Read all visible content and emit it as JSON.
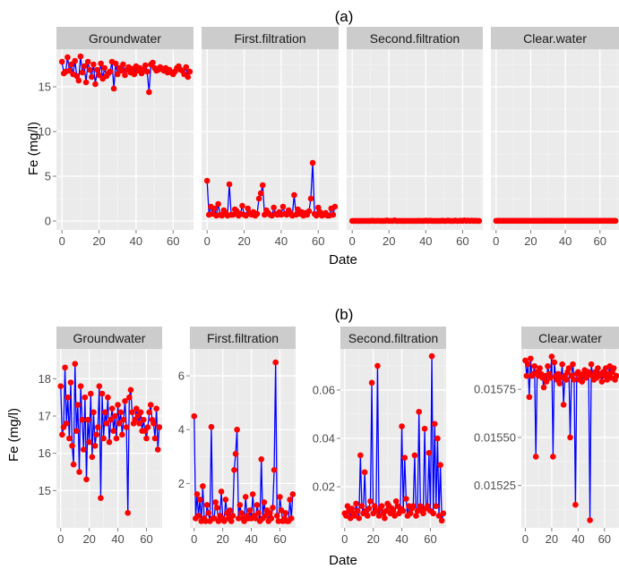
{
  "chart_data": [
    {
      "type": "line",
      "tag": "(a)",
      "xlabel": "Date",
      "ylabel": "Fe (mg/l)",
      "shared_y": true,
      "ylim": [
        -1.0,
        19.2
      ],
      "yticks": [
        0,
        5,
        10,
        15
      ],
      "xlim": [
        -3,
        71
      ],
      "xticks": [
        0,
        20,
        40,
        60
      ],
      "colors": {
        "line": "#0000ff",
        "point": "#ff0000"
      },
      "facets": [
        {
          "name": "Groundwater",
          "values": [
            17.8,
            16.5,
            16.7,
            18.3,
            16.8,
            17.5,
            16.4,
            17.9,
            16.2,
            15.7,
            18.4,
            16.6,
            17.3,
            15.5,
            17.8,
            16.9,
            16.1,
            17.5,
            15.3,
            16.9,
            16.3,
            17.6,
            15.9,
            17.1,
            16.2,
            16.5,
            16.7,
            17.8,
            14.8,
            17.6,
            16.4,
            17.1,
            16.8,
            17.5,
            16.3,
            16.9,
            17.2,
            16.6,
            17.0,
            16.4,
            17.3,
            16.8,
            17.1,
            16.5,
            16.9,
            17.4,
            16.7,
            14.4,
            17.5,
            17.7,
            17.1,
            16.8,
            16.9,
            17.2,
            17.0,
            16.8,
            17.1,
            16.6,
            16.9,
            16.6,
            16.4,
            16.7,
            17.1,
            17.3,
            16.9,
            16.8,
            16.4,
            17.2,
            16.1,
            16.7
          ]
        },
        {
          "name": "First.filtration",
          "values": [
            4.5,
            0.7,
            1.6,
            0.8,
            1.4,
            0.6,
            1.9,
            0.7,
            0.6,
            1.2,
            0.9,
            0.6,
            4.1,
            0.7,
            0.7,
            1.3,
            1.1,
            0.6,
            0.8,
            1.7,
            0.7,
            0.6,
            1.4,
            0.9,
            0.7,
            1.0,
            0.6,
            0.8,
            2.5,
            3.1,
            4.0,
            0.7,
            1.2,
            0.9,
            0.7,
            0.6,
            1.5,
            0.8,
            0.7,
            1.0,
            0.7,
            1.6,
            0.8,
            0.7,
            1.2,
            0.9,
            0.6,
            2.9,
            0.7,
            1.3,
            0.8,
            1.0,
            0.6,
            0.9,
            0.7,
            1.1,
            2.5,
            6.5,
            0.8,
            0.6,
            1.5,
            1.0,
            0.6,
            0.7,
            0.9,
            0.6,
            0.6,
            1.4,
            0.7,
            1.6
          ]
        },
        {
          "name": "Second.filtration",
          "values": [
            0.009,
            0.008,
            0.012,
            0.01,
            0.007,
            0.011,
            0.009,
            0.008,
            0.013,
            0.01,
            0.007,
            0.033,
            0.012,
            0.009,
            0.026,
            0.01,
            0.008,
            0.011,
            0.014,
            0.063,
            0.009,
            0.012,
            0.01,
            0.07,
            0.008,
            0.011,
            0.012,
            0.009,
            0.007,
            0.01,
            0.013,
            0.012,
            0.009,
            0.011,
            0.01,
            0.008,
            0.014,
            0.012,
            0.009,
            0.011,
            0.045,
            0.01,
            0.032,
            0.015,
            0.008,
            0.012,
            0.009,
            0.011,
            0.012,
            0.033,
            0.008,
            0.01,
            0.051,
            0.012,
            0.01,
            0.009,
            0.044,
            0.011,
            0.012,
            0.034,
            0.01,
            0.074,
            0.009,
            0.046,
            0.012,
            0.04,
            0.008,
            0.029,
            0.006,
            0.009
          ]
        },
        {
          "name": "Clear.water",
          "values": [
            0.0159,
            0.01582,
            0.01588,
            0.01571,
            0.01591,
            0.01582,
            0.01583,
            0.01587,
            0.0154,
            0.01584,
            0.01582,
            0.01586,
            0.01583,
            0.01581,
            0.01576,
            0.01582,
            0.01579,
            0.01587,
            0.01583,
            0.01581,
            0.01592,
            0.0154,
            0.01589,
            0.01582,
            0.0158,
            0.01583,
            0.01578,
            0.01581,
            0.01588,
            0.01567,
            0.01582,
            0.0158,
            0.01584,
            0.01586,
            0.0155,
            0.01582,
            0.01588,
            0.0158,
            0.01515,
            0.01583,
            0.01584,
            0.0158,
            0.01582,
            0.01579,
            0.01583,
            0.01585,
            0.01581,
            0.01582,
            0.01584,
            0.01507,
            0.01588,
            0.01582,
            0.0158,
            0.01584,
            0.01581,
            0.01586,
            0.01582,
            0.01583,
            0.01579,
            0.01584,
            0.01582,
            0.01586,
            0.0158,
            0.01583,
            0.01587,
            0.01581,
            0.01584,
            0.01586,
            0.0158,
            0.01582
          ]
        }
      ]
    },
    {
      "type": "line",
      "tag": "(b)",
      "xlabel": "Date",
      "ylabel": "Fe (mg/l)",
      "shared_y": false,
      "xlim": [
        -3,
        71
      ],
      "xticks": [
        0,
        20,
        40,
        60
      ],
      "colors": {
        "line": "#0000ff",
        "point": "#ff0000"
      },
      "facets": [
        {
          "name": "Groundwater",
          "ylim": [
            14.0,
            18.8
          ],
          "yticks": [
            15,
            16,
            17,
            18
          ],
          "yticklabels": [
            "15",
            "16",
            "17",
            "18"
          ],
          "source_facet": 0
        },
        {
          "name": "First.filtration",
          "ylim": [
            0.35,
            7.0
          ],
          "yticks": [
            2,
            4,
            6
          ],
          "yticklabels": [
            "2",
            "4",
            "6"
          ],
          "source_facet": 1
        },
        {
          "name": "Second.filtration",
          "ylim": [
            0.003,
            0.077
          ],
          "yticks": [
            0.02,
            0.04,
            0.06
          ],
          "yticklabels": [
            "0.02",
            "0.04",
            "0.06"
          ],
          "source_facet": 2
        },
        {
          "name": "Clear.water",
          "ylim": [
            0.01503,
            0.01596
          ],
          "yticks": [
            0.01525,
            0.0155,
            0.01575
          ],
          "yticklabels": [
            "0.01525",
            "0.01550",
            "0.01575"
          ],
          "source_facet": 3
        }
      ]
    }
  ]
}
